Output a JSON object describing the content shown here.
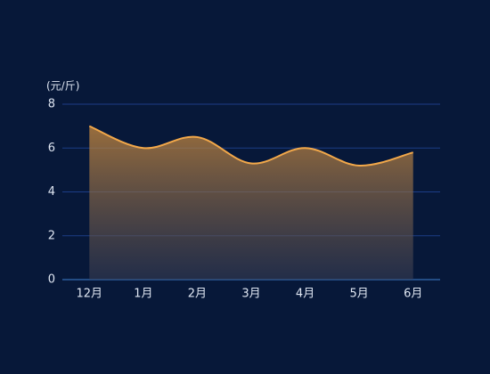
{
  "chart_data": {
    "type": "area",
    "y_label": "(元/斤)",
    "categories": [
      "12月",
      "1月",
      "2月",
      "3月",
      "4月",
      "5月",
      "6月"
    ],
    "values": [
      7,
      6,
      6.5,
      5.3,
      6,
      5.2,
      5.8
    ],
    "color": "#f2a84a",
    "ylim": [
      0,
      8
    ],
    "yticks": [
      0,
      2,
      4,
      6,
      8
    ],
    "grid": true
  }
}
